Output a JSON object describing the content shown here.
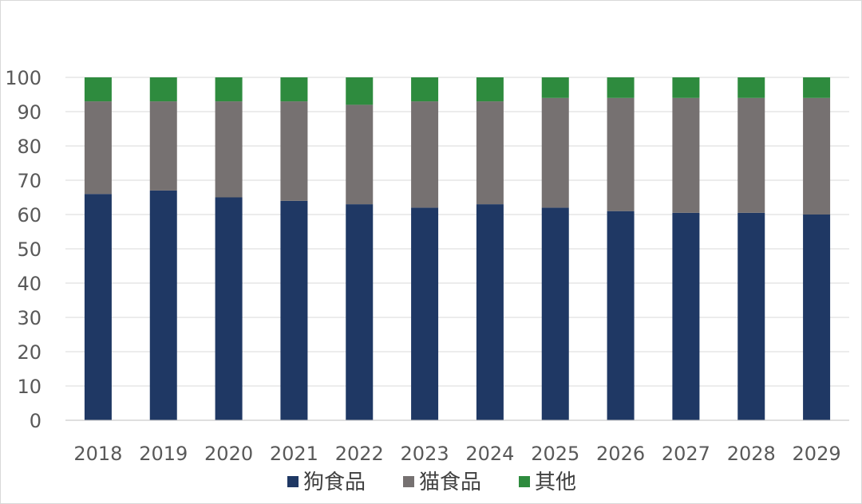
{
  "chart_data": {
    "type": "bar",
    "stacked": true,
    "categories": [
      "2018",
      "2019",
      "2020",
      "2021",
      "2022",
      "2023",
      "2024",
      "2025",
      "2026",
      "2027",
      "2028",
      "2029"
    ],
    "series": [
      {
        "name": "狗食品",
        "color": "#1f3864",
        "values": [
          66,
          67,
          65,
          64,
          63,
          62,
          63,
          62,
          61,
          60.5,
          60.5,
          60
        ]
      },
      {
        "name": "猫食品",
        "color": "#767171",
        "values": [
          27,
          26,
          28,
          29,
          29,
          31,
          30,
          32,
          33,
          33.5,
          33.5,
          34
        ]
      },
      {
        "name": "其他",
        "color": "#2e8b3e",
        "values": [
          7,
          7,
          7,
          7,
          8,
          7,
          7,
          6,
          6,
          6,
          6,
          6
        ]
      }
    ],
    "ylim": [
      0,
      100
    ],
    "yticks": [
      0,
      10,
      20,
      30,
      40,
      50,
      60,
      70,
      80,
      90,
      100
    ],
    "grid": true,
    "legend_position": "bottom"
  }
}
